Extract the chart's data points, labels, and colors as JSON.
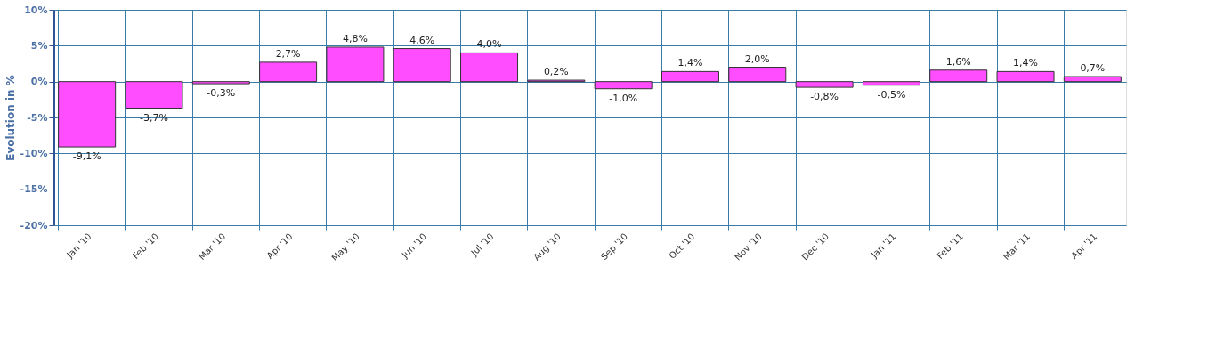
{
  "chart_data": {
    "type": "bar",
    "ylabel": "Evolution in %",
    "categories": [
      "Jan '10",
      "Feb '10",
      "Mar '10",
      "Apr '10",
      "May '10",
      "Jun '10",
      "Jul '10",
      "Aug '10",
      "Sep '10",
      "Oct '10",
      "Nov '10",
      "Dec '10",
      "Jan '11",
      "Feb '11",
      "Mar '11",
      "Apr '11"
    ],
    "values": [
      -9.1,
      -3.7,
      -0.3,
      2.7,
      4.8,
      4.6,
      4.0,
      0.2,
      -1.0,
      1.4,
      2.0,
      -0.8,
      -0.5,
      1.6,
      1.4,
      0.7
    ],
    "value_labels": [
      "-9,1%",
      "-3,7%",
      "-0,3%",
      "2,7%",
      "4,8%",
      "4,6%",
      "4,0%",
      "0,2%",
      "-1,0%",
      "1,4%",
      "2,0%",
      "-0,8%",
      "-0,5%",
      "1,6%",
      "1,4%",
      "0,7%"
    ],
    "color": "#ff4dff",
    "ylim": [
      -20,
      10
    ],
    "yticks": [
      {
        "value": -20,
        "label": "-20%"
      },
      {
        "value": -15,
        "label": "-15%"
      },
      {
        "value": -10,
        "label": "-10%"
      },
      {
        "value": -5,
        "label": "-5%"
      },
      {
        "value": 0,
        "label": "0%"
      },
      {
        "value": 5,
        "label": "5%"
      },
      {
        "value": 10,
        "label": "10%"
      }
    ],
    "grid": true
  }
}
